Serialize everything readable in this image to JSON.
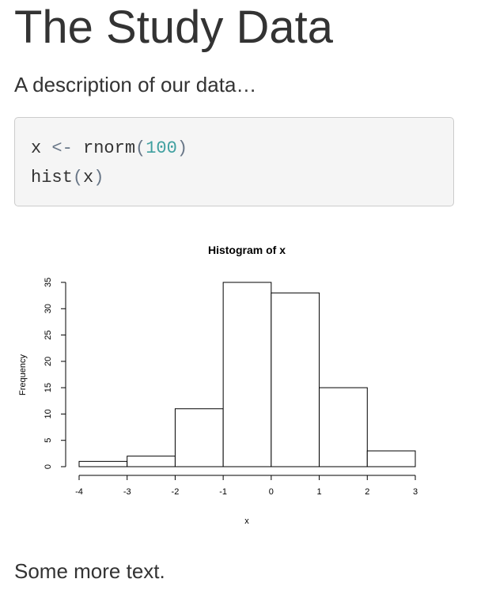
{
  "page": {
    "title": "The Study Data",
    "intro": "A description of our data…",
    "outro": "Some more text."
  },
  "code": {
    "line1": {
      "var": "x",
      "op": "<-",
      "fn": "rnorm",
      "open": "(",
      "num": "100",
      "close": ")"
    },
    "line2": {
      "fn": "hist",
      "open": "(",
      "arg": "x",
      "close": ")"
    }
  },
  "chart_data": {
    "type": "bar",
    "title": "Histogram of x",
    "xlabel": "x",
    "ylabel": "Frequency",
    "bins": [
      {
        "from": -4,
        "to": -3,
        "count": 1
      },
      {
        "from": -3,
        "to": -2,
        "count": 2
      },
      {
        "from": -2,
        "to": -1,
        "count": 11
      },
      {
        "from": -1,
        "to": 0,
        "count": 35
      },
      {
        "from": 0,
        "to": 1,
        "count": 33
      },
      {
        "from": 1,
        "to": 2,
        "count": 15
      },
      {
        "from": 2,
        "to": 3,
        "count": 3
      }
    ],
    "xlim": [
      -4,
      3
    ],
    "ylim": [
      0,
      35
    ],
    "xticks": [
      -4,
      -3,
      -2,
      -1,
      0,
      1,
      2,
      3
    ],
    "yticks": [
      0,
      5,
      10,
      15,
      20,
      25,
      30,
      35
    ],
    "grid": false,
    "colors": {
      "fill": "#ffffff",
      "stroke": "#000000"
    }
  }
}
